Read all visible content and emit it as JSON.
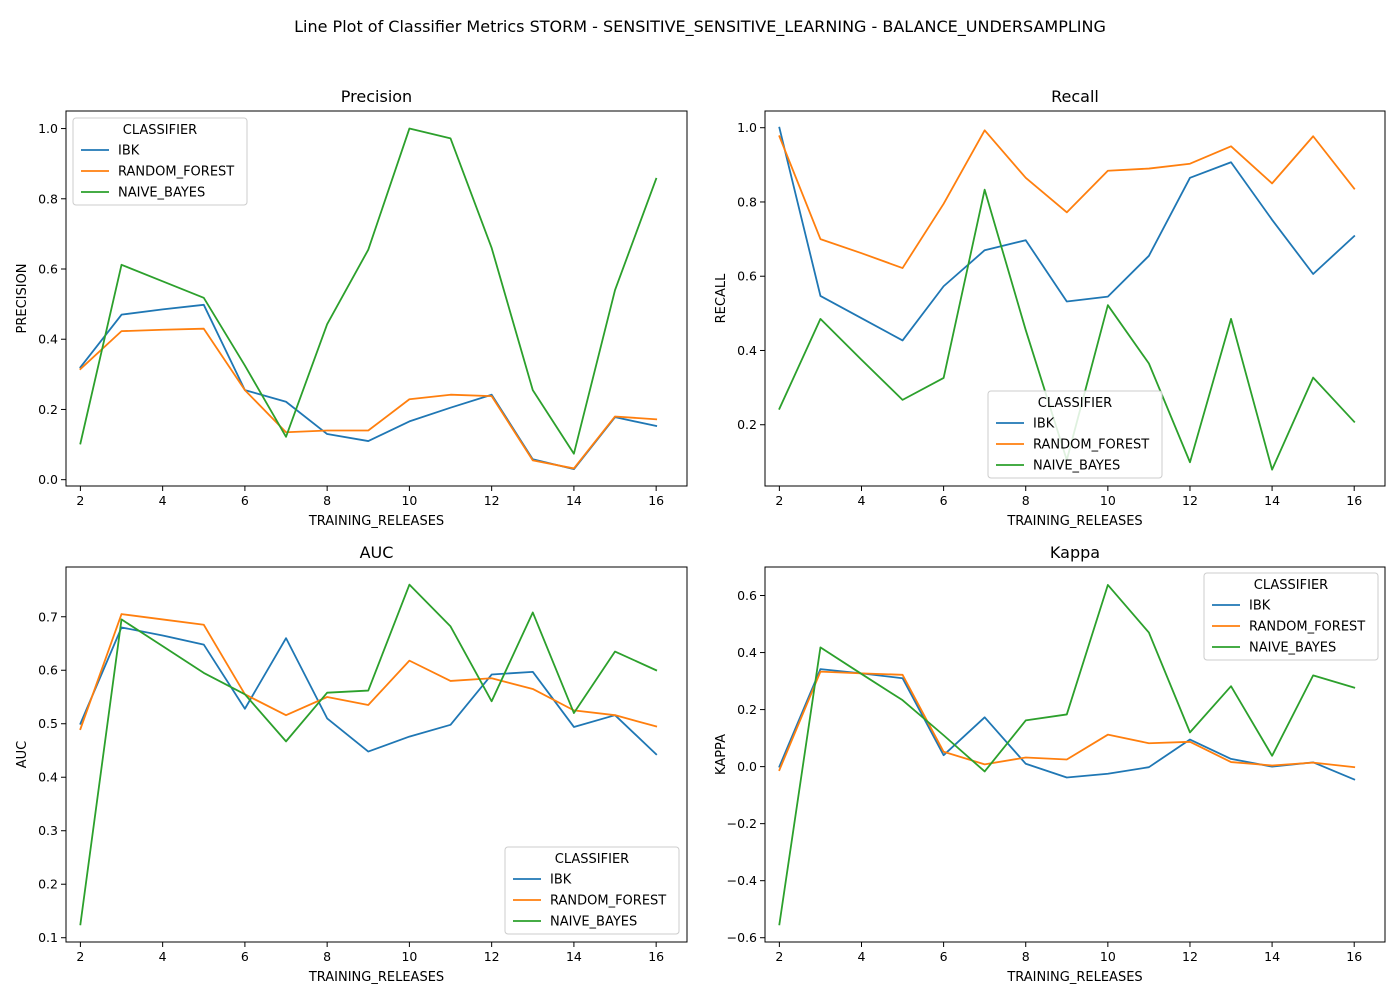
{
  "suptitle": "Line Plot of Classifier Metrics STORM - SENSITIVE_SENSITIVE_LEARNING - BALANCE_UNDERSAMPLING",
  "chart_data": [
    {
      "type": "line",
      "title": "Precision",
      "xlabel": "TRAINING_RELEASES",
      "ylabel": "PRECISION",
      "x": [
        2,
        3,
        4,
        5,
        6,
        7,
        8,
        9,
        10,
        11,
        12,
        13,
        14,
        15,
        16
      ],
      "xlim": [
        1.65,
        16.75
      ],
      "xticks": [
        2,
        4,
        6,
        8,
        10,
        12,
        14,
        16
      ],
      "ylim": [
        -0.018,
        1.05
      ],
      "yticks": [
        0.0,
        0.2,
        0.4,
        0.6,
        0.8,
        1.0
      ],
      "ytick_labels": [
        "0.0",
        "0.2",
        "0.4",
        "0.6",
        "0.8",
        "1.0"
      ],
      "legend": {
        "title": "CLASSIFIER",
        "location": "upper left"
      },
      "series": [
        {
          "name": "IBK",
          "color": "#1f77b4",
          "values": [
            0.32,
            0.47,
            0.485,
            0.498,
            0.255,
            0.222,
            0.13,
            0.11,
            0.166,
            0.205,
            0.242,
            0.058,
            0.03,
            0.178,
            0.153
          ]
        },
        {
          "name": "RANDOM_FOREST",
          "color": "#ff7f0e",
          "values": [
            0.315,
            0.423,
            0.427,
            0.43,
            0.255,
            0.135,
            0.14,
            0.14,
            0.229,
            0.242,
            0.238,
            0.055,
            0.032,
            0.18,
            0.172
          ]
        },
        {
          "name": "NAIVE_BAYES",
          "color": "#2ca02c",
          "values": [
            0.103,
            0.612,
            0.565,
            0.518,
            0.325,
            0.122,
            0.443,
            0.655,
            1.0,
            0.972,
            0.66,
            0.255,
            0.074,
            0.54,
            0.857
          ]
        }
      ]
    },
    {
      "type": "line",
      "title": "Recall",
      "xlabel": "TRAINING_RELEASES",
      "ylabel": "RECALL",
      "x": [
        2,
        3,
        4,
        5,
        6,
        7,
        8,
        9,
        10,
        11,
        12,
        13,
        14,
        15,
        16
      ],
      "xlim": [
        1.65,
        16.75
      ],
      "xticks": [
        2,
        4,
        6,
        8,
        10,
        12,
        14,
        16
      ],
      "ylim": [
        0.035,
        1.045
      ],
      "yticks": [
        0.2,
        0.4,
        0.6,
        0.8,
        1.0
      ],
      "ytick_labels": [
        "0.2",
        "0.4",
        "0.6",
        "0.8",
        "1.0"
      ],
      "legend": {
        "title": "CLASSIFIER",
        "location": "lower center"
      },
      "series": [
        {
          "name": "IBK",
          "color": "#1f77b4",
          "values": [
            1.0,
            0.547,
            0.487,
            0.427,
            0.573,
            0.67,
            0.697,
            0.532,
            0.545,
            0.655,
            0.865,
            0.907,
            0.752,
            0.606,
            0.708
          ]
        },
        {
          "name": "RANDOM_FOREST",
          "color": "#ff7f0e",
          "values": [
            0.977,
            0.7,
            0.662,
            0.622,
            0.795,
            0.993,
            0.865,
            0.772,
            0.884,
            0.89,
            0.903,
            0.95,
            0.85,
            0.977,
            0.836
          ]
        },
        {
          "name": "NAIVE_BAYES",
          "color": "#2ca02c",
          "values": [
            0.243,
            0.485,
            0.375,
            0.267,
            0.326,
            0.833,
            0.455,
            0.105,
            0.522,
            0.365,
            0.099,
            0.485,
            0.079,
            0.327,
            0.208
          ]
        }
      ]
    },
    {
      "type": "line",
      "title": "AUC",
      "xlabel": "TRAINING_RELEASES",
      "ylabel": "AUC",
      "x": [
        2,
        3,
        4,
        5,
        6,
        7,
        8,
        9,
        10,
        11,
        12,
        13,
        14,
        15,
        16
      ],
      "xlim": [
        1.65,
        16.75
      ],
      "xticks": [
        2,
        4,
        6,
        8,
        10,
        12,
        14,
        16
      ],
      "ylim": [
        0.092,
        0.793
      ],
      "yticks": [
        0.1,
        0.2,
        0.3,
        0.4,
        0.5,
        0.6,
        0.7
      ],
      "ytick_labels": [
        "0.1",
        "0.2",
        "0.3",
        "0.4",
        "0.5",
        "0.6",
        "0.7"
      ],
      "legend": {
        "title": "CLASSIFIER",
        "location": "lower right"
      },
      "series": [
        {
          "name": "IBK",
          "color": "#1f77b4",
          "values": [
            0.5,
            0.68,
            0.665,
            0.648,
            0.528,
            0.66,
            0.51,
            0.448,
            0.476,
            0.498,
            0.592,
            0.597,
            0.494,
            0.516,
            0.443
          ]
        },
        {
          "name": "RANDOM_FOREST",
          "color": "#ff7f0e",
          "values": [
            0.49,
            0.705,
            0.695,
            0.685,
            0.555,
            0.516,
            0.55,
            0.535,
            0.618,
            0.58,
            0.585,
            0.565,
            0.525,
            0.516,
            0.495
          ]
        },
        {
          "name": "NAIVE_BAYES",
          "color": "#2ca02c",
          "values": [
            0.125,
            0.695,
            0.645,
            0.595,
            0.555,
            0.467,
            0.558,
            0.562,
            0.76,
            0.682,
            0.542,
            0.708,
            0.52,
            0.635,
            0.6
          ]
        }
      ]
    },
    {
      "type": "line",
      "title": "Kappa",
      "xlabel": "TRAINING_RELEASES",
      "ylabel": "KAPPA",
      "x": [
        2,
        3,
        4,
        5,
        6,
        7,
        8,
        9,
        10,
        11,
        12,
        13,
        14,
        15,
        16
      ],
      "xlim": [
        1.65,
        16.75
      ],
      "xticks": [
        2,
        4,
        6,
        8,
        10,
        12,
        14,
        16
      ],
      "ylim": [
        -0.615,
        0.7
      ],
      "yticks": [
        -0.6,
        -0.4,
        -0.2,
        0.0,
        0.2,
        0.4,
        0.6
      ],
      "ytick_labels": [
        "−0.6",
        "−0.4",
        "−0.2",
        "0.0",
        "0.2",
        "0.4",
        "0.6"
      ],
      "legend": {
        "title": "CLASSIFIER",
        "location": "upper right"
      },
      "series": [
        {
          "name": "IBK",
          "color": "#1f77b4",
          "values": [
            0.0,
            0.342,
            0.327,
            0.31,
            0.04,
            0.173,
            0.01,
            -0.038,
            -0.025,
            -0.002,
            0.095,
            0.027,
            0.0,
            0.015,
            -0.045
          ]
        },
        {
          "name": "RANDOM_FOREST",
          "color": "#ff7f0e",
          "values": [
            -0.012,
            0.333,
            0.327,
            0.322,
            0.052,
            0.008,
            0.032,
            0.025,
            0.112,
            0.082,
            0.087,
            0.016,
            0.004,
            0.014,
            -0.002
          ]
        },
        {
          "name": "NAIVE_BAYES",
          "color": "#2ca02c",
          "values": [
            -0.553,
            0.418,
            0.325,
            0.233,
            0.11,
            -0.017,
            0.162,
            0.183,
            0.637,
            0.47,
            0.12,
            0.282,
            0.038,
            0.32,
            0.277
          ]
        }
      ]
    }
  ]
}
